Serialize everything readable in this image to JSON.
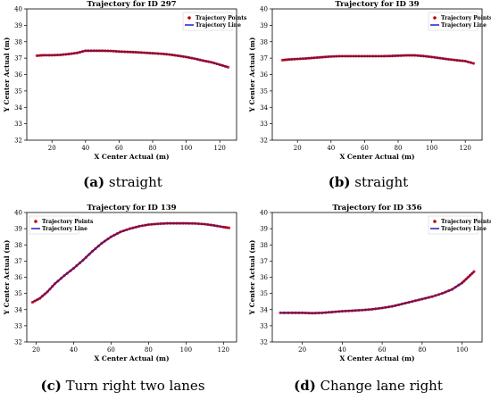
{
  "chart_data": [
    {
      "type": "line",
      "title": "Trajectory for ID 297",
      "caption_letter": "(a)",
      "caption_text": "straight",
      "xlabel": "X Center Actual (m)",
      "ylabel": "Y Center Actual (m)",
      "xlim": [
        5,
        130
      ],
      "ylim": [
        32,
        40
      ],
      "xticks": [
        20,
        40,
        60,
        80,
        100,
        120
      ],
      "yticks": [
        32,
        33,
        34,
        35,
        36,
        37,
        38,
        39,
        40
      ],
      "legend": [
        "Trajectory Points",
        "Trajectory Line"
      ],
      "legend_position": "top-right",
      "colors": {
        "points": "#c00000",
        "line": "#1f1fbf"
      },
      "x": [
        11,
        15,
        20,
        25,
        30,
        35,
        40,
        45,
        50,
        55,
        60,
        65,
        70,
        75,
        80,
        85,
        90,
        95,
        100,
        105,
        110,
        115,
        120,
        125
      ],
      "y": [
        37.15,
        37.18,
        37.18,
        37.2,
        37.25,
        37.32,
        37.45,
        37.45,
        37.45,
        37.44,
        37.4,
        37.38,
        37.36,
        37.33,
        37.3,
        37.27,
        37.22,
        37.15,
        37.07,
        36.97,
        36.85,
        36.75,
        36.6,
        36.45
      ]
    },
    {
      "type": "line",
      "title": "Trajectory for ID 39",
      "caption_letter": "(b)",
      "caption_text": "straight",
      "xlabel": "X Center Actual (m)",
      "ylabel": "Y Center Actual (m)",
      "xlim": [
        5,
        130
      ],
      "ylim": [
        32,
        40
      ],
      "xticks": [
        20,
        40,
        60,
        80,
        100,
        120
      ],
      "yticks": [
        32,
        33,
        34,
        35,
        36,
        37,
        38,
        39,
        40
      ],
      "legend": [
        "Trajectory Points",
        "Trajectory Line"
      ],
      "legend_position": "top-right",
      "colors": {
        "points": "#c00000",
        "line": "#1f1fbf"
      },
      "x": [
        11,
        15,
        20,
        25,
        30,
        35,
        40,
        45,
        50,
        55,
        60,
        65,
        70,
        75,
        80,
        85,
        90,
        95,
        100,
        105,
        110,
        115,
        120,
        125
      ],
      "y": [
        36.88,
        36.92,
        36.95,
        36.98,
        37.02,
        37.06,
        37.1,
        37.12,
        37.12,
        37.12,
        37.12,
        37.12,
        37.12,
        37.13,
        37.15,
        37.17,
        37.17,
        37.13,
        37.07,
        37.0,
        36.93,
        36.87,
        36.82,
        36.68
      ]
    },
    {
      "type": "line",
      "title": "Trajectory for ID 139",
      "caption_letter": "(c)",
      "caption_text": "Turn right two lanes",
      "xlabel": "X Center Actual (m)",
      "ylabel": "Y Center Actual (m)",
      "xlim": [
        15,
        127
      ],
      "ylim": [
        32,
        40
      ],
      "xticks": [
        20,
        40,
        60,
        80,
        100,
        120
      ],
      "yticks": [
        32,
        33,
        34,
        35,
        36,
        37,
        38,
        39,
        40
      ],
      "legend": [
        "Trajectory Points",
        "Trajectory Line"
      ],
      "legend_position": "top-left",
      "colors": {
        "points": "#c00000",
        "line": "#1f1fbf"
      },
      "x": [
        18,
        22,
        26,
        30,
        35,
        40,
        45,
        50,
        55,
        60,
        65,
        70,
        75,
        80,
        85,
        90,
        95,
        100,
        105,
        110,
        115,
        120,
        123
      ],
      "y": [
        34.45,
        34.7,
        35.1,
        35.6,
        36.1,
        36.55,
        37.05,
        37.6,
        38.1,
        38.5,
        38.8,
        39.0,
        39.15,
        39.25,
        39.3,
        39.33,
        39.33,
        39.33,
        39.32,
        39.28,
        39.2,
        39.1,
        39.05
      ]
    },
    {
      "type": "line",
      "title": "Trajectory for ID 356",
      "caption_letter": "(d)",
      "caption_text": "Change lane right",
      "xlabel": "X Center Actual (m)",
      "ylabel": "Y Center Actual (m)",
      "xlim": [
        5,
        110
      ],
      "ylim": [
        32,
        40
      ],
      "xticks": [
        20,
        40,
        60,
        80,
        100
      ],
      "yticks": [
        32,
        33,
        34,
        35,
        36,
        37,
        38,
        39,
        40
      ],
      "legend": [
        "Trajectory Points",
        "Trajectory Line"
      ],
      "legend_position": "top-right",
      "colors": {
        "points": "#c00000",
        "line": "#1f1fbf"
      },
      "x": [
        9,
        15,
        20,
        25,
        30,
        35,
        40,
        45,
        50,
        55,
        60,
        65,
        70,
        75,
        80,
        85,
        90,
        95,
        100,
        103,
        106
      ],
      "y": [
        33.8,
        33.8,
        33.8,
        33.78,
        33.8,
        33.85,
        33.9,
        33.93,
        33.97,
        34.02,
        34.1,
        34.2,
        34.35,
        34.5,
        34.65,
        34.8,
        35.0,
        35.25,
        35.65,
        36.0,
        36.35
      ]
    }
  ]
}
